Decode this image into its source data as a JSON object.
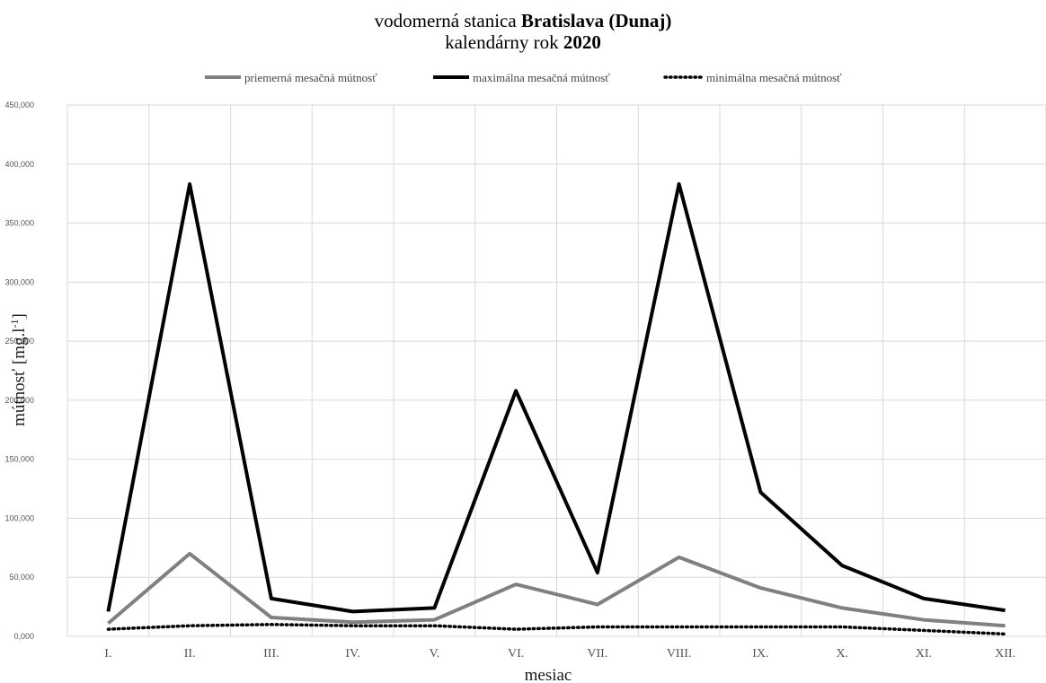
{
  "chart_data": {
    "type": "line",
    "title": {
      "line1_prefix": "vodomerná stanica",
      "line1_bold": "Bratislava (Dunaj)",
      "line2_prefix": "kalendárny rok",
      "line2_bold": "2020"
    },
    "xlabel": "mesiac",
    "ylabel_main": "mútnosť [mg.l",
    "ylabel_sup": "-1",
    "ylabel_end": "]",
    "ylim": [
      0,
      450
    ],
    "yticks": [
      0,
      50,
      100,
      150,
      200,
      250,
      300,
      350,
      400,
      450
    ],
    "ytick_labels": [
      "0,000",
      "50,000",
      "100,000",
      "150,000",
      "200,000",
      "250,000",
      "300,000",
      "350,000",
      "400,000",
      "450,000"
    ],
    "categories": [
      "I.",
      "II.",
      "III.",
      "IV.",
      "V.",
      "VI.",
      "VII.",
      "VIII.",
      "IX.",
      "X.",
      "XI.",
      "XII."
    ],
    "grid": true,
    "legend_position": "top",
    "series": [
      {
        "name": "priemerná mesačná mútnosť",
        "color": "#808080",
        "style": "solid",
        "values": [
          11,
          70,
          16,
          12,
          14,
          44,
          27,
          67,
          41,
          24,
          14,
          9
        ]
      },
      {
        "name": "maximálna mesačná mútnosť",
        "color": "#000000",
        "style": "solid",
        "values": [
          21,
          383,
          32,
          21,
          24,
          208,
          54,
          383,
          122,
          60,
          32,
          22
        ]
      },
      {
        "name": "minimálna mesačná mútnosť",
        "color": "#000000",
        "style": "dotted",
        "values": [
          6,
          9,
          10,
          9,
          9,
          6,
          8,
          8,
          8,
          8,
          5,
          2
        ]
      }
    ]
  }
}
